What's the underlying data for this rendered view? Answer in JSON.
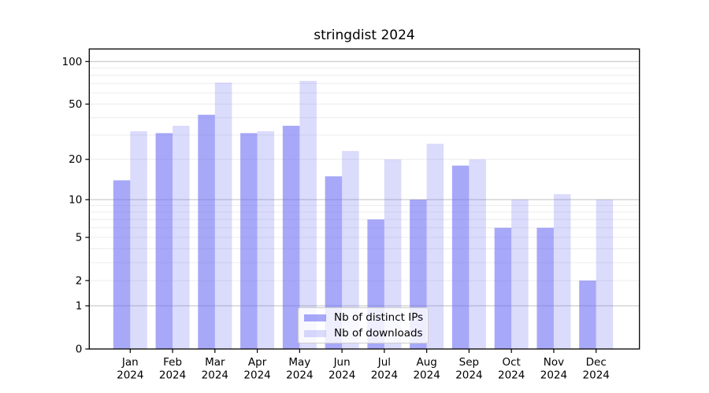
{
  "chart_data": {
    "type": "bar",
    "title": "stringdist 2024",
    "categories": [
      "Jan",
      "Feb",
      "Mar",
      "Apr",
      "May",
      "Jun",
      "Jul",
      "Aug",
      "Sep",
      "Oct",
      "Nov",
      "Dec"
    ],
    "year_label": "2024",
    "series": [
      {
        "key": "distinct-ips",
        "name": "Nb of distinct IPs",
        "fill": "rgba(110,110,245,0.6)",
        "values": [
          14,
          31,
          42,
          31,
          35,
          15,
          7,
          10,
          18,
          6,
          6,
          2
        ]
      },
      {
        "key": "downloads",
        "name": "Nb of downloads",
        "fill": "rgba(110,110,245,0.25)",
        "values": [
          32,
          35,
          71,
          32,
          73,
          23,
          20,
          26,
          20,
          10,
          11,
          10
        ]
      }
    ],
    "y_axis": {
      "ticks": [
        0,
        1,
        2,
        5,
        10,
        20,
        50,
        100
      ],
      "scale": "log1p",
      "ylim": [
        0,
        123
      ]
    },
    "grid": {
      "major": [
        1,
        10,
        100
      ],
      "minor": [
        2,
        3,
        4,
        5,
        6,
        7,
        8,
        9,
        20,
        30,
        40,
        50,
        60,
        70,
        80,
        90
      ],
      "major_color": "#c6c6c6",
      "minor_color": "#ececec"
    },
    "legend_position": "bottom-center-inside",
    "axis_color": "#000000"
  }
}
